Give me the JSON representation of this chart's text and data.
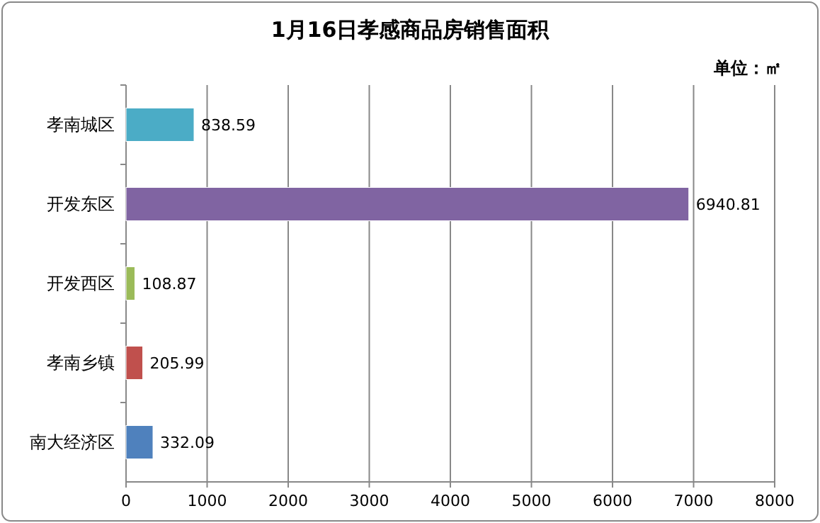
{
  "chart_data": {
    "type": "bar",
    "orientation": "horizontal",
    "title": "1月16日孝感商品房销售面积",
    "categories": [
      "孝南城区",
      "开发东区",
      "开发西区",
      "孝南乡镇",
      "南大经济区"
    ],
    "values": [
      838.59,
      6940.81,
      108.87,
      205.99,
      332.09
    ],
    "colors": [
      "#4bacc6",
      "#8064a2",
      "#9bbb59",
      "#c0504d",
      "#4f81bd"
    ],
    "xlim": [
      0,
      8000
    ],
    "xticks": [
      0,
      1000,
      2000,
      3000,
      4000,
      5000,
      6000,
      7000,
      8000
    ],
    "grid": "x",
    "data_labels": true,
    "annotations": [
      "单位：㎡"
    ]
  }
}
